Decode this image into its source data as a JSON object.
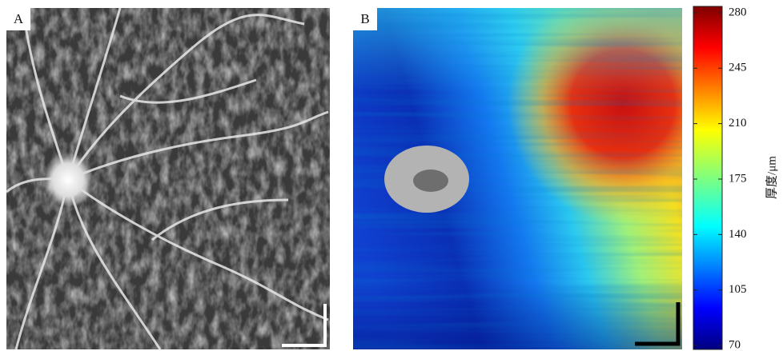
{
  "chart_data": {
    "type": "heatmap",
    "panel_labels": [
      "A",
      "B"
    ],
    "colorbar_label": "厚度/μm",
    "colormap": "jet",
    "ylim": [
      67.5,
      284
    ],
    "yticks": [
      70,
      105,
      140,
      175,
      210,
      245,
      280
    ]
  }
}
